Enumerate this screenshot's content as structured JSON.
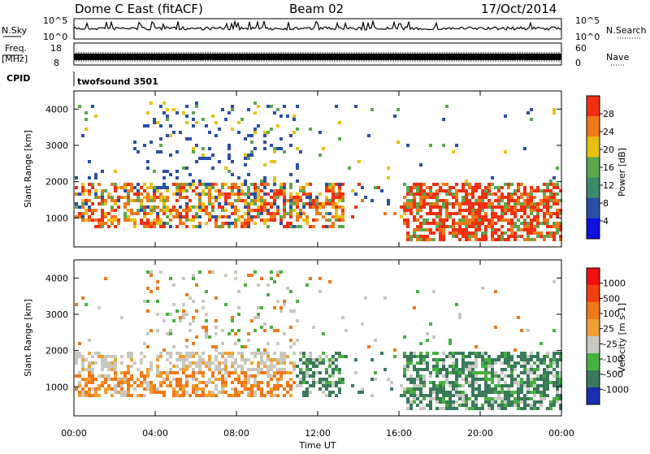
{
  "header": {
    "station": "Dome C East (fitACF)",
    "beam": "Beam 02",
    "date": "17/Oct/2014"
  },
  "chart_data": [
    {
      "type": "line",
      "panel": "noise-strip",
      "left_label": "N.Sky",
      "right_label": "N.Search",
      "left_ticks": [
        "10^5",
        "10^0"
      ],
      "right_ticks": [
        "10^5",
        "10^0"
      ]
    },
    {
      "type": "line",
      "panel": "freq-nave-strip",
      "left_label_1": "Freq.",
      "left_label_2": "[MHz]",
      "right_label": "Nave",
      "left_ticks": [
        "18",
        "8"
      ],
      "right_ticks": [
        "60",
        "0"
      ]
    },
    {
      "type": "table",
      "panel": "cpid",
      "label": "CPID",
      "value": "twofsound 3501"
    },
    {
      "type": "heatmap",
      "panel": "power",
      "ylabel": "Slant Range [km]",
      "xlabel": "Time UT",
      "y_ticks": [
        "1000",
        "2000",
        "3000",
        "4000"
      ],
      "ylim": [
        200,
        4500
      ],
      "colorbar_label": "Power [dB]",
      "colorbar_ticks": [
        "4",
        "8",
        "12",
        "16",
        "20",
        "24",
        "28"
      ],
      "colorbar_colors": [
        "#1010e0",
        "#2a4fa8",
        "#3d8a6a",
        "#5aa850",
        "#e8c010",
        "#f07818",
        "#f03010"
      ]
    },
    {
      "type": "heatmap",
      "panel": "velocity",
      "ylabel": "Slant Range [km]",
      "xlabel": "Time UT",
      "y_ticks": [
        "1000",
        "2000",
        "3000",
        "4000"
      ],
      "ylim": [
        200,
        4500
      ],
      "colorbar_label": "Velocity [m s-1]",
      "colorbar_ticks": [
        "1000",
        "500",
        "100",
        "25",
        "-25",
        "-100",
        "-500",
        "-1000"
      ],
      "colorbar_colors": [
        "#1a2fb0",
        "#3a7a5a",
        "#48b040",
        "#c8c8c0",
        "#f0a030",
        "#f07818",
        "#f04010",
        "#f01010"
      ]
    }
  ],
  "x_axis": {
    "ticks": [
      "00:00",
      "04:00",
      "08:00",
      "12:00",
      "16:00",
      "20:00",
      "00:00"
    ],
    "label": "Time UT"
  }
}
